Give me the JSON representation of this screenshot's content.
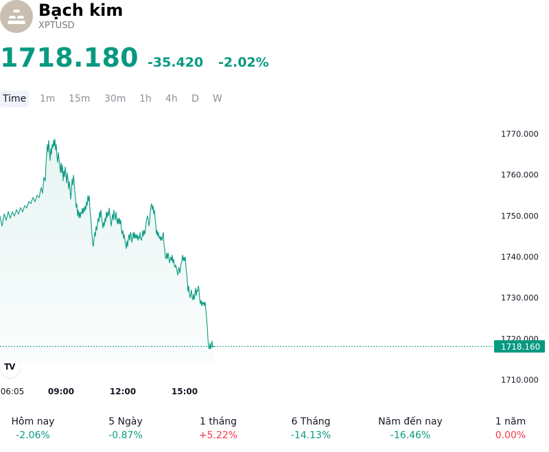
{
  "header": {
    "title": "Bạch kim",
    "symbol": "XPTUSD",
    "logo_icon": "platinum-bars-icon"
  },
  "quote": {
    "price": "1718.180",
    "change": "-35.420",
    "change_pct": "-2.02%"
  },
  "colors": {
    "down": "#089981",
    "up": "#f23645",
    "line": "#089981"
  },
  "tabs": [
    {
      "label": "Time",
      "active": true
    },
    {
      "label": "1m"
    },
    {
      "label": "15m"
    },
    {
      "label": "30m"
    },
    {
      "label": "1h"
    },
    {
      "label": "4h"
    },
    {
      "label": "D"
    },
    {
      "label": "W"
    }
  ],
  "chart_data": {
    "type": "area",
    "ylim": [
      1710,
      1772
    ],
    "y_ticks": [
      "1770.000",
      "1760.000",
      "1750.000",
      "1740.000",
      "1730.000",
      "1720.000",
      "1710.000"
    ],
    "x_ticks": [
      "06:05",
      "09:00",
      "12:00",
      "15:00"
    ],
    "last_price_label": "1718.160",
    "last_price": 1718.16,
    "series": [
      {
        "points": [
          [
            0,
            1750
          ],
          [
            3,
            1747.5
          ],
          [
            6,
            1750.5
          ],
          [
            9,
            1749
          ],
          [
            12,
            1751
          ],
          [
            15,
            1749.5
          ],
          [
            18,
            1751
          ],
          [
            21,
            1750
          ],
          [
            24,
            1751.5
          ],
          [
            27,
            1750.5
          ],
          [
            30,
            1752
          ],
          [
            33,
            1751
          ],
          [
            36,
            1752.5
          ],
          [
            39,
            1752
          ],
          [
            42,
            1753.5
          ],
          [
            45,
            1753
          ],
          [
            48,
            1754.5
          ],
          [
            51,
            1753.5
          ],
          [
            54,
            1755
          ],
          [
            57,
            1754.5
          ],
          [
            60,
            1757
          ],
          [
            62,
            1755.5
          ],
          [
            64,
            1759.5
          ],
          [
            66,
            1758.5
          ],
          [
            67,
            1762.5
          ],
          [
            68,
            1765
          ],
          [
            69,
            1767.5
          ],
          [
            70,
            1765.5
          ],
          [
            71,
            1768.5
          ],
          [
            72,
            1766
          ],
          [
            73,
            1763.5
          ],
          [
            74,
            1766.5
          ],
          [
            75,
            1765
          ],
          [
            76,
            1767.5
          ],
          [
            77,
            1766.5
          ],
          [
            78,
            1768.5
          ],
          [
            79,
            1767
          ],
          [
            80,
            1768.8
          ],
          [
            81,
            1766
          ],
          [
            82,
            1767.5
          ],
          [
            83,
            1764.5
          ],
          [
            84,
            1763
          ],
          [
            85,
            1765.5
          ],
          [
            86,
            1764
          ],
          [
            87,
            1762.5
          ],
          [
            88,
            1760.5
          ],
          [
            89,
            1763
          ],
          [
            90,
            1760.5
          ],
          [
            91,
            1762.5
          ],
          [
            92,
            1758.5
          ],
          [
            93,
            1761
          ],
          [
            94,
            1759.5
          ],
          [
            95,
            1762
          ],
          [
            96,
            1760.5
          ],
          [
            97,
            1758
          ],
          [
            98,
            1760.5
          ],
          [
            99,
            1759
          ],
          [
            100,
            1756.5
          ],
          [
            101,
            1758.5
          ],
          [
            102,
            1757
          ],
          [
            103,
            1754
          ],
          [
            104,
            1756
          ],
          [
            105,
            1759
          ],
          [
            106,
            1757.5
          ],
          [
            107,
            1760
          ],
          [
            108,
            1758.5
          ],
          [
            109,
            1756
          ],
          [
            110,
            1754.5
          ],
          [
            111,
            1752
          ],
          [
            112,
            1753
          ],
          [
            113,
            1750
          ],
          [
            114,
            1751.5
          ],
          [
            115,
            1749.5
          ],
          [
            116,
            1751
          ],
          [
            117,
            1749.5
          ],
          [
            118,
            1751
          ],
          [
            119,
            1750.5
          ],
          [
            120,
            1752
          ],
          [
            121,
            1750.5
          ],
          [
            122,
            1752
          ],
          [
            123,
            1751
          ],
          [
            124,
            1752.5
          ],
          [
            125,
            1751.5
          ],
          [
            126,
            1753.5
          ],
          [
            127,
            1752.5
          ],
          [
            128,
            1755
          ],
          [
            129,
            1753.5
          ],
          [
            130,
            1755
          ],
          [
            131,
            1752
          ],
          [
            132,
            1750
          ],
          [
            133,
            1748
          ],
          [
            134,
            1745.5
          ],
          [
            135,
            1743.5
          ],
          [
            136,
            1742.5
          ],
          [
            137,
            1744.5
          ],
          [
            138,
            1746
          ],
          [
            139,
            1745
          ],
          [
            140,
            1747.5
          ],
          [
            141,
            1746.5
          ],
          [
            142,
            1748
          ],
          [
            143,
            1749.5
          ],
          [
            144,
            1748.5
          ],
          [
            145,
            1751
          ],
          [
            146,
            1749.5
          ],
          [
            147,
            1751.5
          ],
          [
            148,
            1750
          ],
          [
            149,
            1748.5
          ],
          [
            150,
            1747
          ],
          [
            151,
            1748.5
          ],
          [
            152,
            1747.5
          ],
          [
            153,
            1749.5
          ],
          [
            154,
            1748.5
          ],
          [
            155,
            1751
          ],
          [
            156,
            1749.5
          ],
          [
            157,
            1751
          ],
          [
            158,
            1750
          ],
          [
            159,
            1752
          ],
          [
            160,
            1750.5
          ],
          [
            161,
            1749
          ],
          [
            162,
            1747.5
          ],
          [
            163,
            1749
          ],
          [
            164,
            1750.5
          ],
          [
            165,
            1749
          ],
          [
            166,
            1751.5
          ],
          [
            167,
            1750
          ],
          [
            168,
            1749
          ],
          [
            169,
            1751
          ],
          [
            170,
            1749.5
          ],
          [
            171,
            1748
          ],
          [
            172,
            1749.5
          ],
          [
            173,
            1748
          ],
          [
            174,
            1749.5
          ],
          [
            175,
            1748
          ],
          [
            176,
            1749
          ],
          [
            177,
            1746.5
          ],
          [
            178,
            1745.5
          ],
          [
            179,
            1746.5
          ],
          [
            180,
            1744.5
          ],
          [
            181,
            1745.5
          ],
          [
            182,
            1744
          ],
          [
            183,
            1743
          ],
          [
            184,
            1742
          ],
          [
            185,
            1744
          ],
          [
            186,
            1742.5
          ],
          [
            187,
            1744.5
          ],
          [
            188,
            1745.5
          ],
          [
            189,
            1744
          ],
          [
            190,
            1746
          ],
          [
            191,
            1745.5
          ],
          [
            192,
            1743.5
          ],
          [
            193,
            1744.5
          ],
          [
            194,
            1746
          ],
          [
            195,
            1744.5
          ],
          [
            196,
            1746
          ],
          [
            197,
            1744.5
          ],
          [
            198,
            1745.5
          ],
          [
            199,
            1744.5
          ],
          [
            200,
            1745.5
          ],
          [
            201,
            1744
          ],
          [
            202,
            1745
          ],
          [
            203,
            1744.5
          ],
          [
            204,
            1746
          ],
          [
            205,
            1744.5
          ],
          [
            206,
            1744
          ],
          [
            207,
            1745
          ],
          [
            208,
            1746.5
          ],
          [
            209,
            1745
          ],
          [
            210,
            1746.5
          ],
          [
            211,
            1745.5
          ],
          [
            212,
            1747
          ],
          [
            213,
            1748.5
          ],
          [
            214,
            1749.5
          ],
          [
            215,
            1750
          ],
          [
            216,
            1749
          ],
          [
            217,
            1747.5
          ],
          [
            218,
            1748.5
          ],
          [
            219,
            1751
          ],
          [
            220,
            1752.5
          ],
          [
            221,
            1753
          ],
          [
            222,
            1751.5
          ],
          [
            223,
            1752.5
          ],
          [
            224,
            1750.5
          ],
          [
            225,
            1751.5
          ],
          [
            226,
            1749.5
          ],
          [
            227,
            1748
          ],
          [
            228,
            1745.5
          ],
          [
            229,
            1746.5
          ],
          [
            230,
            1745
          ],
          [
            231,
            1746
          ],
          [
            232,
            1744.5
          ],
          [
            233,
            1745
          ],
          [
            234,
            1744
          ],
          [
            235,
            1745
          ],
          [
            236,
            1744
          ],
          [
            237,
            1745
          ],
          [
            238,
            1746
          ],
          [
            239,
            1743
          ],
          [
            240,
            1742
          ],
          [
            241,
            1740
          ],
          [
            242,
            1739.5
          ],
          [
            243,
            1741
          ],
          [
            244,
            1739.5
          ],
          [
            245,
            1741
          ],
          [
            246,
            1740
          ],
          [
            247,
            1738.5
          ],
          [
            248,
            1739.5
          ],
          [
            249,
            1740
          ],
          [
            250,
            1739
          ],
          [
            251,
            1740.5
          ],
          [
            252,
            1738.5
          ],
          [
            253,
            1739.5
          ],
          [
            254,
            1738
          ],
          [
            255,
            1737.5
          ],
          [
            256,
            1738
          ],
          [
            257,
            1737.5
          ],
          [
            258,
            1736.5
          ],
          [
            259,
            1735.5
          ],
          [
            260,
            1737
          ],
          [
            261,
            1737.5
          ],
          [
            262,
            1736
          ],
          [
            263,
            1737
          ],
          [
            264,
            1738.5
          ],
          [
            265,
            1739
          ],
          [
            266,
            1740.5
          ],
          [
            267,
            1739
          ],
          [
            268,
            1740
          ],
          [
            269,
            1739
          ],
          [
            270,
            1740
          ],
          [
            271,
            1737.5
          ],
          [
            272,
            1736
          ],
          [
            273,
            1734
          ],
          [
            274,
            1731.5
          ],
          [
            275,
            1733
          ],
          [
            276,
            1731
          ],
          [
            277,
            1730
          ],
          [
            278,
            1731
          ],
          [
            279,
            1732
          ],
          [
            280,
            1730
          ],
          [
            281,
            1729.5
          ],
          [
            282,
            1731
          ],
          [
            283,
            1729.5
          ],
          [
            284,
            1731
          ],
          [
            285,
            1732.5
          ],
          [
            286,
            1730.5
          ],
          [
            287,
            1732
          ],
          [
            288,
            1731.5
          ],
          [
            289,
            1733
          ],
          [
            290,
            1732
          ],
          [
            291,
            1729.5
          ],
          [
            292,
            1728.5
          ],
          [
            293,
            1729.5
          ],
          [
            294,
            1728
          ],
          [
            295,
            1729
          ],
          [
            296,
            1728.5
          ],
          [
            297,
            1729
          ],
          [
            298,
            1728
          ],
          [
            299,
            1729
          ],
          [
            300,
            1727
          ],
          [
            301,
            1725
          ],
          [
            302,
            1723
          ],
          [
            303,
            1720
          ],
          [
            304,
            1718
          ],
          [
            305,
            1717.5
          ],
          [
            306,
            1719
          ],
          [
            307,
            1717.5
          ],
          [
            308,
            1718.5
          ],
          [
            309,
            1719.5
          ],
          [
            310,
            1718
          ],
          [
            311,
            1718.2
          ],
          [
            312,
            1718.16
          ]
        ]
      }
    ]
  },
  "periods": [
    {
      "label": "Hôm nay",
      "value": "-2.06%",
      "dir": "neg"
    },
    {
      "label": "5 Ngày",
      "value": "-0.87%",
      "dir": "neg"
    },
    {
      "label": "1 tháng",
      "value": "+5.22%",
      "dir": "pos"
    },
    {
      "label": "6 Tháng",
      "value": "-14.13%",
      "dir": "neg"
    },
    {
      "label": "Năm đến nay",
      "value": "-16.46%",
      "dir": "neg"
    },
    {
      "label": "1 năm",
      "value": "0.00%",
      "dir": "pos"
    }
  ],
  "tradingview_logo_text": "TV"
}
